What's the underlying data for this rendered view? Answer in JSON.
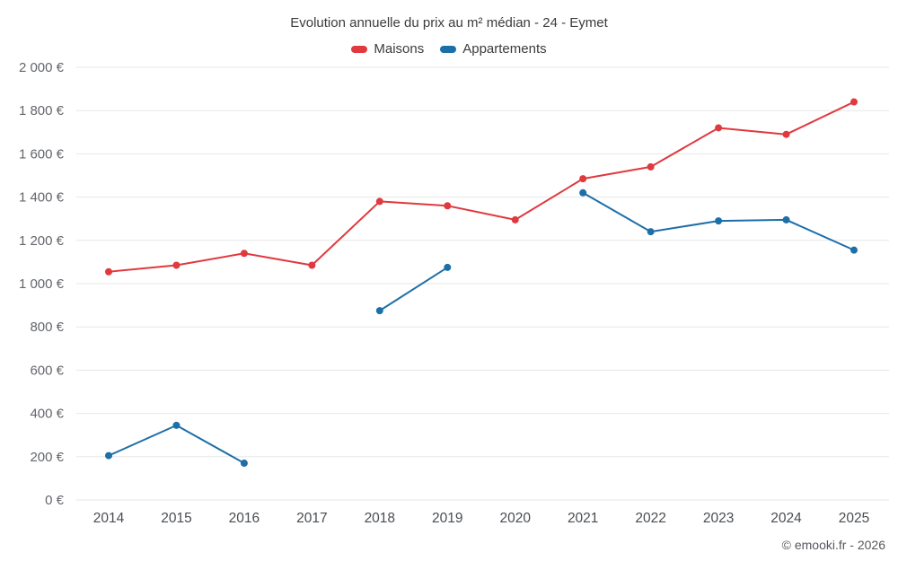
{
  "page": {
    "footer_credit": "© emooki.fr - 2026"
  },
  "chart_data": {
    "type": "line",
    "title": "Evolution annuelle du prix au m² médian - 24 - Eymet",
    "categories": [
      "2014",
      "2015",
      "2016",
      "2017",
      "2018",
      "2019",
      "2020",
      "2021",
      "2022",
      "2023",
      "2024",
      "2025"
    ],
    "series": [
      {
        "name": "Maisons",
        "color": "#e0393e",
        "values": [
          1055,
          1085,
          1140,
          1085,
          1380,
          1360,
          1295,
          1485,
          1540,
          1720,
          1690,
          1840
        ]
      },
      {
        "name": "Appartements",
        "color": "#1d6fa8",
        "values": [
          205,
          345,
          170,
          null,
          875,
          1075,
          null,
          1420,
          1240,
          1290,
          1295,
          1155
        ]
      }
    ],
    "ylim": [
      0,
      2000
    ],
    "ytick_step": 200,
    "y_suffix": " €",
    "grid": "horizontal",
    "gridline_color": "#e7e7e7",
    "legend_position": "top"
  }
}
